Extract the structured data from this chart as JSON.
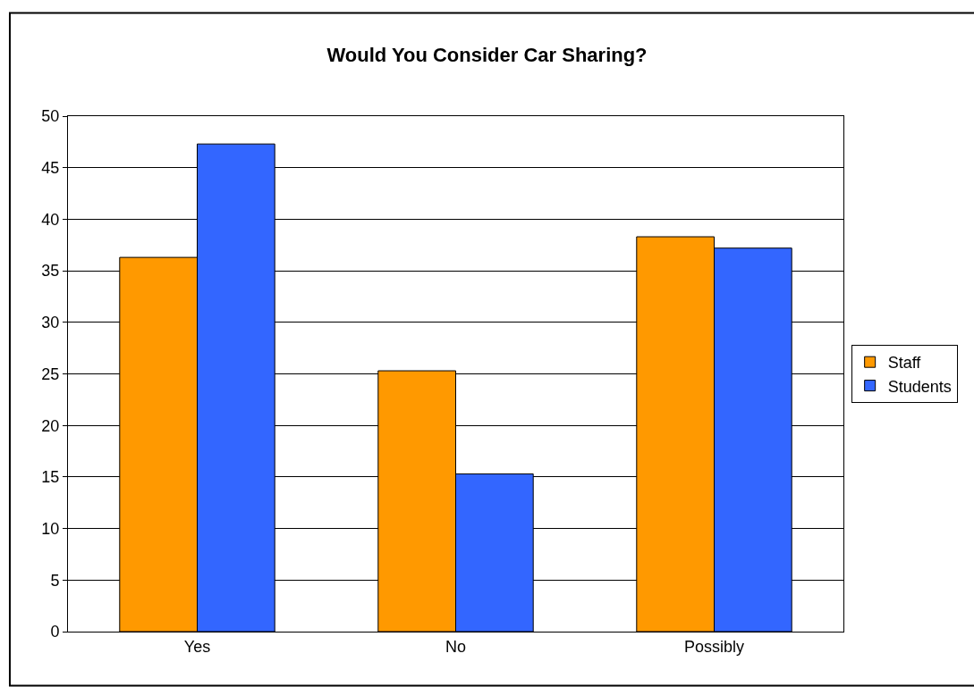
{
  "chart_data": {
    "type": "bar",
    "title": "Would You Consider Car Sharing?",
    "categories": [
      "Yes",
      "No",
      "Possibly"
    ],
    "series": [
      {
        "name": "Staff",
        "color": "#ff9900",
        "values": [
          36.3,
          25.3,
          38.3
        ]
      },
      {
        "name": "Students",
        "color": "#3366ff",
        "values": [
          47.3,
          15.3,
          37.2
        ]
      }
    ],
    "ylim": [
      0,
      50
    ],
    "yticks": [
      0,
      5,
      10,
      15,
      20,
      25,
      30,
      35,
      40,
      45,
      50
    ],
    "grid": "y",
    "legend": "right"
  }
}
